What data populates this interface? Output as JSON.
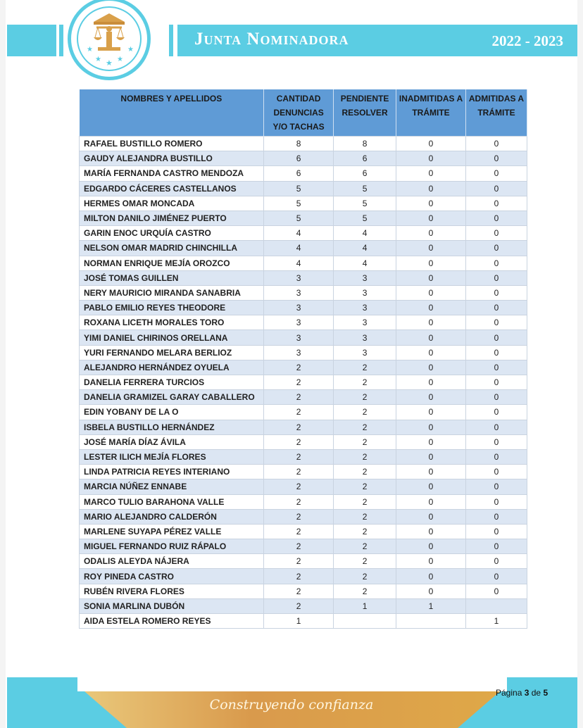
{
  "header": {
    "title": "Junta Nominadora",
    "years": "2022 - 2023"
  },
  "colors": {
    "cyan": "#5bcde3",
    "header_blue": "#5f9bd6",
    "row_alt": "#dce6f3",
    "gold": "#d9a04a"
  },
  "table": {
    "columns": [
      "NOMBRES Y APELLIDOS",
      "CANTIDAD DENUNCIAS Y/O TACHAS",
      "PENDIENTE RESOLVER",
      "INADMITIDAS A TRÁMITE",
      "ADMITIDAS A TRÁMITE"
    ],
    "rows": [
      [
        "RAFAEL BUSTILLO ROMERO",
        "8",
        "8",
        "0",
        "0"
      ],
      [
        "GAUDY ALEJANDRA BUSTILLO",
        "6",
        "6",
        "0",
        "0"
      ],
      [
        "MARÍA FERNANDA CASTRO MENDOZA",
        "6",
        "6",
        "0",
        "0"
      ],
      [
        "EDGARDO CÁCERES CASTELLANOS",
        "5",
        "5",
        "0",
        "0"
      ],
      [
        "HERMES OMAR MONCADA",
        "5",
        "5",
        "0",
        "0"
      ],
      [
        "MILTON DANILO JIMÉNEZ PUERTO",
        "5",
        "5",
        "0",
        "0"
      ],
      [
        "GARIN ENOC URQUÍA CASTRO",
        "4",
        "4",
        "0",
        "0"
      ],
      [
        "NELSON OMAR MADRID CHINCHILLA",
        "4",
        "4",
        "0",
        "0"
      ],
      [
        "NORMAN ENRIQUE MEJÍA OROZCO",
        "4",
        "4",
        "0",
        "0"
      ],
      [
        "JOSÉ TOMAS GUILLEN",
        "3",
        "3",
        "0",
        "0"
      ],
      [
        "NERY MAURICIO MIRANDA SANABRIA",
        "3",
        "3",
        "0",
        "0"
      ],
      [
        "PABLO EMILIO REYES THEODORE",
        "3",
        "3",
        "0",
        "0"
      ],
      [
        "ROXANA LICETH MORALES TORO",
        "3",
        "3",
        "0",
        "0"
      ],
      [
        "YIMI DANIEL CHIRINOS ORELLANA",
        "3",
        "3",
        "0",
        "0"
      ],
      [
        "YURI FERNANDO MELARA BERLIOZ",
        "3",
        "3",
        "0",
        "0"
      ],
      [
        "ALEJANDRO HERNÁNDEZ OYUELA",
        "2",
        "2",
        "0",
        "0"
      ],
      [
        "DANELIA FERRERA TURCIOS",
        "2",
        "2",
        "0",
        "0"
      ],
      [
        "DANELIA GRAMIZEL GARAY CABALLERO",
        "2",
        "2",
        "0",
        "0"
      ],
      [
        "EDIN YOBANY DE LA O",
        "2",
        "2",
        "0",
        "0"
      ],
      [
        "ISBELA BUSTILLO HERNÁNDEZ",
        "2",
        "2",
        "0",
        "0"
      ],
      [
        "JOSÉ MARÍA DÍAZ ÁVILA",
        "2",
        "2",
        "0",
        "0"
      ],
      [
        "LESTER ILICH MEJÍA FLORES",
        "2",
        "2",
        "0",
        "0"
      ],
      [
        "LINDA PATRICIA REYES INTERIANO",
        "2",
        "2",
        "0",
        "0"
      ],
      [
        "MARCIA NÚÑEZ ENNABE",
        "2",
        "2",
        "0",
        "0"
      ],
      [
        "MARCO TULIO BARAHONA VALLE",
        "2",
        "2",
        "0",
        "0"
      ],
      [
        "MARIO ALEJANDRO CALDERÓN",
        "2",
        "2",
        "0",
        "0"
      ],
      [
        "MARLENE SUYAPA PÉREZ VALLE",
        "2",
        "2",
        "0",
        "0"
      ],
      [
        "MIGUEL FERNANDO RUIZ RÁPALO",
        "2",
        "2",
        "0",
        "0"
      ],
      [
        "ODALIS ALEYDA NÁJERA",
        "2",
        "2",
        "0",
        "0"
      ],
      [
        "ROY PINEDA CASTRO",
        "2",
        "2",
        "0",
        "0"
      ],
      [
        "RUBÉN RIVERA FLORES",
        "2",
        "2",
        "0",
        "0"
      ],
      [
        "SONIA MARLINA DUBÓN",
        "2",
        "1",
        "1",
        ""
      ],
      [
        "AIDA ESTELA ROMERO REYES",
        "1",
        "",
        "",
        "1"
      ]
    ]
  },
  "footer": {
    "slogan": "Construyendo confianza",
    "page_label": "Página",
    "page_current": "3",
    "page_sep": "de",
    "page_total": "5"
  }
}
